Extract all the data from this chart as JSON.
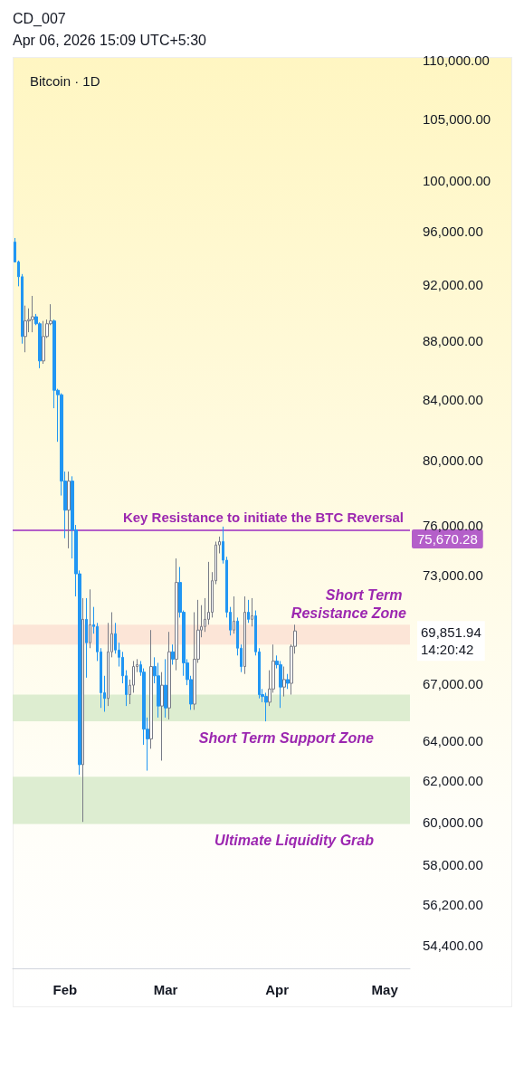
{
  "chart_data": {
    "type": "candlestick",
    "title": "Bitcoin · 1D",
    "annotations": [
      "CD_007",
      "Apr 06, 2026 15:09 UTC+5:30",
      "75,670.28",
      "69,851.94\n14:20:42"
    ],
    "x": [
      "2026-01-18",
      "2026-01-19",
      "2026-01-20",
      "2026-01-21",
      "2026-01-22",
      "2026-01-23",
      "2026-01-24",
      "2026-01-25",
      "2026-01-26",
      "2026-01-27",
      "2026-01-28",
      "2026-01-29",
      "2026-01-30",
      "2026-01-31",
      "2026-02-01",
      "2026-02-02",
      "2026-02-03",
      "2026-02-04",
      "2026-02-05",
      "2026-02-06",
      "2026-02-07",
      "2026-02-08",
      "2026-02-09",
      "2026-02-10",
      "2026-02-11",
      "2026-02-12",
      "2026-02-13",
      "2026-02-14",
      "2026-02-15",
      "2026-02-16",
      "2026-02-17",
      "2026-02-18",
      "2026-02-19",
      "2026-02-20",
      "2026-02-21",
      "2026-02-22",
      "2026-02-23",
      "2026-02-24",
      "2026-02-25",
      "2026-02-26",
      "2026-02-27",
      "2026-02-28",
      "2026-03-01",
      "2026-03-02",
      "2026-03-03",
      "2026-03-04",
      "2026-03-05",
      "2026-03-06",
      "2026-03-07",
      "2026-03-08",
      "2026-03-09",
      "2026-03-10",
      "2026-03-11",
      "2026-03-12",
      "2026-03-13",
      "2026-03-14",
      "2026-03-15",
      "2026-03-16",
      "2026-03-17",
      "2026-03-18",
      "2026-03-19",
      "2026-03-20",
      "2026-03-21",
      "2026-03-22",
      "2026-03-23",
      "2026-03-24",
      "2026-03-25",
      "2026-03-26",
      "2026-03-27",
      "2026-03-28",
      "2026-03-29",
      "2026-03-30",
      "2026-03-31",
      "2026-04-01",
      "2026-04-02",
      "2026-04-03",
      "2026-04-04",
      "2026-04-05",
      "2026-04-06"
    ],
    "ohlc": [
      [
        95200,
        95500,
        93700,
        93700
      ],
      [
        93700,
        93800,
        91900,
        92600
      ],
      [
        92600,
        92800,
        87800,
        88300
      ],
      [
        88300,
        90500,
        87200,
        89400
      ],
      [
        89400,
        90300,
        88600,
        89500
      ],
      [
        89500,
        91200,
        88600,
        89700
      ],
      [
        89700,
        89900,
        89100,
        89200
      ],
      [
        89200,
        89300,
        86100,
        86600
      ],
      [
        86600,
        89400,
        86400,
        88300
      ],
      [
        88300,
        89500,
        88200,
        89200
      ],
      [
        89200,
        90600,
        89100,
        89400
      ],
      [
        89400,
        89500,
        83400,
        84600
      ],
      [
        84600,
        84700,
        81200,
        84300
      ],
      [
        84300,
        84400,
        77800,
        78700
      ],
      [
        78700,
        79300,
        75200,
        76900
      ],
      [
        76900,
        79300,
        74600,
        78700
      ],
      [
        78700,
        79000,
        74000,
        75700
      ],
      [
        75700,
        76000,
        71800,
        73100
      ],
      [
        73100,
        73300,
        62300,
        62800
      ],
      [
        62800,
        71700,
        60000,
        70500
      ],
      [
        70500,
        71700,
        67300,
        69200
      ],
      [
        69200,
        72200,
        68900,
        70200
      ],
      [
        70200,
        71200,
        69700,
        70100
      ],
      [
        70100,
        70300,
        68200,
        68700
      ],
      [
        68700,
        68900,
        65700,
        66500
      ],
      [
        66500,
        67400,
        65500,
        66200
      ],
      [
        66200,
        70300,
        65800,
        68700
      ],
      [
        68700,
        70900,
        68400,
        69700
      ],
      [
        69700,
        70300,
        68600,
        68800
      ],
      [
        68800,
        69200,
        67900,
        68400
      ],
      [
        68400,
        68700,
        67000,
        67400
      ],
      [
        67400,
        67700,
        65800,
        66400
      ],
      [
        66400,
        67200,
        65900,
        66900
      ],
      [
        66900,
        68200,
        66500,
        67900
      ],
      [
        67900,
        68300,
        67600,
        68000
      ],
      [
        68000,
        68200,
        67400,
        67600
      ],
      [
        67600,
        67800,
        63800,
        64600
      ],
      [
        64600,
        65200,
        62500,
        64100
      ],
      [
        64100,
        69900,
        63600,
        67900
      ],
      [
        67900,
        68400,
        67000,
        67400
      ],
      [
        67400,
        68100,
        65200,
        65800
      ],
      [
        65800,
        67600,
        63000,
        66900
      ],
      [
        66900,
        68300,
        65200,
        65700
      ],
      [
        65700,
        69800,
        65100,
        68700
      ],
      [
        68700,
        69100,
        68000,
        68300
      ],
      [
        68300,
        74000,
        67700,
        72600
      ],
      [
        72600,
        73500,
        70600,
        70900
      ],
      [
        70900,
        71000,
        67400,
        68100
      ],
      [
        68100,
        68300,
        66900,
        67200
      ],
      [
        67200,
        67400,
        65600,
        65900
      ],
      [
        65900,
        70900,
        65600,
        68300
      ],
      [
        68300,
        71600,
        68100,
        69900
      ],
      [
        69900,
        71300,
        69500,
        70100
      ],
      [
        70100,
        71700,
        69800,
        70500
      ],
      [
        70500,
        73800,
        70200,
        70900
      ],
      [
        70900,
        73200,
        70600,
        72700
      ],
      [
        72700,
        75000,
        72500,
        74800
      ],
      [
        74800,
        75300,
        74300,
        75000
      ],
      [
        75000,
        75900,
        73700,
        73900
      ],
      [
        73900,
        74100,
        70600,
        70900
      ],
      [
        70900,
        71200,
        69600,
        69900
      ],
      [
        69900,
        71800,
        69700,
        70400
      ],
      [
        70400,
        70600,
        68500,
        68900
      ],
      [
        68900,
        69100,
        67600,
        67900
      ],
      [
        67900,
        71800,
        67500,
        70900
      ],
      [
        70900,
        71600,
        70300,
        70500
      ],
      [
        70500,
        71700,
        70100,
        70700
      ],
      [
        70700,
        71000,
        68500,
        68700
      ],
      [
        68700,
        68900,
        66200,
        66400
      ],
      [
        66400,
        66700,
        66000,
        66300
      ],
      [
        66300,
        66500,
        65000,
        66000
      ],
      [
        66000,
        67700,
        65800,
        66700
      ],
      [
        66700,
        69100,
        66500,
        68200
      ],
      [
        68200,
        68500,
        67800,
        68000
      ],
      [
        68000,
        68200,
        65700,
        66800
      ],
      [
        66800,
        67900,
        66300,
        67200
      ],
      [
        67200,
        67500,
        66700,
        67000
      ],
      [
        67000,
        69100,
        66400,
        69000
      ],
      [
        69000,
        70200,
        68600,
        69851.94
      ]
    ],
    "xlim": [
      "2026-01-17T10:00",
      "2026-05-08"
    ],
    "xticks": [
      {
        "value": "2026-02-01",
        "label": "Feb"
      },
      {
        "value": "2026-03-01",
        "label": "Mar"
      },
      {
        "value": "2026-04-01",
        "label": "Apr"
      },
      {
        "value": "2026-05-01",
        "label": "May"
      }
    ],
    "log": "y",
    "ylim": [
      53400,
      110300
    ],
    "yticks": [
      {
        "value": 110000,
        "label": "110,000.00"
      },
      {
        "value": 105000,
        "label": "105,000.00"
      },
      {
        "value": 100000,
        "label": "100,000.00"
      },
      {
        "value": 96000,
        "label": "96,000.00"
      },
      {
        "value": 92000,
        "label": "92,000.00"
      },
      {
        "value": 88000,
        "label": "88,000.00"
      },
      {
        "value": 84000,
        "label": "84,000.00"
      },
      {
        "value": 80000,
        "label": "80,000.00"
      },
      {
        "value": 76000,
        "label": "76,000.00"
      },
      {
        "value": 73000,
        "label": "73,000.00"
      },
      {
        "value": 67000,
        "label": "67,000.00"
      },
      {
        "value": 64000,
        "label": "64,000.00"
      },
      {
        "value": 62000,
        "label": "62,000.00"
      },
      {
        "value": 60000,
        "label": "60,000.00"
      },
      {
        "value": 58000,
        "label": "58,000.00"
      },
      {
        "value": 56200,
        "label": "56,200.00"
      },
      {
        "value": 54400,
        "label": "54,400.00"
      }
    ],
    "ref_lines": [
      {
        "axis": "y",
        "value": 75670.28,
        "label": "Key Resistance to initiate the BTC Reversal",
        "color": "#b45fc9"
      }
    ],
    "bands": [
      {
        "axis": "y",
        "from": 69100,
        "to": 70200,
        "label": "Short Term Resistance Zone",
        "color": "#fbe0d3"
      },
      {
        "axis": "y",
        "from": 65000,
        "to": 66400,
        "label": "Short Term Support Zone",
        "color": "#d7eaca"
      },
      {
        "axis": "y",
        "from": 59900,
        "to": 62200,
        "label": "Ultimate Liquidity Grab",
        "color": "#d7eaca"
      }
    ]
  }
}
